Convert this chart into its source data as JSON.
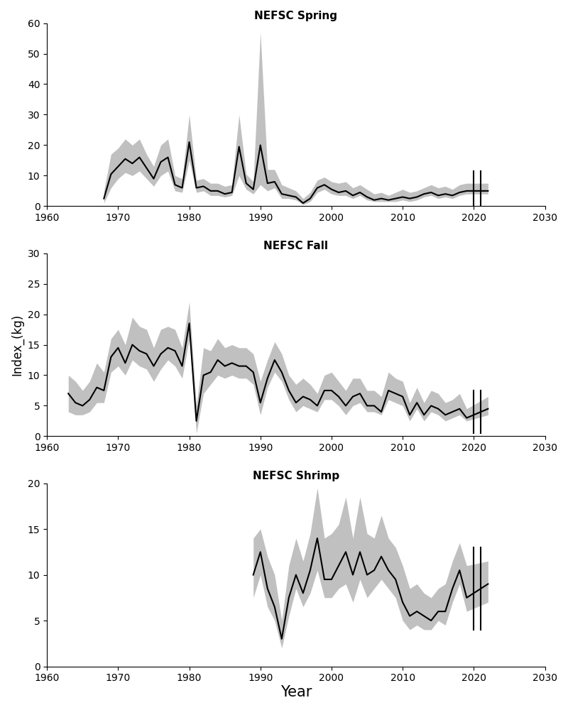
{
  "spring": {
    "title": "NEFSC Spring",
    "years": [
      1968,
      1969,
      1970,
      1971,
      1972,
      1973,
      1974,
      1975,
      1976,
      1977,
      1978,
      1979,
      1980,
      1981,
      1982,
      1983,
      1984,
      1985,
      1986,
      1987,
      1988,
      1989,
      1990,
      1991,
      1992,
      1993,
      1994,
      1995,
      1996,
      1997,
      1998,
      1999,
      2000,
      2001,
      2002,
      2003,
      2004,
      2005,
      2006,
      2007,
      2008,
      2009,
      2010,
      2011,
      2012,
      2013,
      2014,
      2015,
      2016,
      2017,
      2018,
      2019,
      2022
    ],
    "index": [
      2.5,
      10.5,
      13.0,
      15.5,
      14.0,
      16.0,
      12.5,
      9.0,
      14.5,
      16.0,
      7.0,
      6.0,
      21.0,
      6.0,
      6.5,
      5.0,
      5.0,
      4.0,
      4.5,
      19.5,
      7.5,
      5.5,
      20.0,
      7.5,
      8.0,
      4.0,
      3.5,
      3.0,
      1.0,
      2.5,
      6.0,
      7.0,
      5.5,
      4.5,
      5.0,
      3.5,
      4.5,
      3.0,
      2.0,
      2.5,
      2.0,
      2.5,
      3.0,
      2.5,
      3.0,
      4.0,
      4.5,
      3.5,
      4.0,
      3.5,
      4.5,
      5.0,
      5.0
    ],
    "lower": [
      1.0,
      6.0,
      9.0,
      11.0,
      10.0,
      11.5,
      9.0,
      6.5,
      10.0,
      11.5,
      5.0,
      4.5,
      15.0,
      4.5,
      5.0,
      3.5,
      3.5,
      3.0,
      3.5,
      10.0,
      5.5,
      4.0,
      7.0,
      5.0,
      6.0,
      2.5,
      2.5,
      2.0,
      0.5,
      1.5,
      4.5,
      5.5,
      4.0,
      3.5,
      3.5,
      2.5,
      3.5,
      2.0,
      1.5,
      1.5,
      1.5,
      1.5,
      2.0,
      1.5,
      2.0,
      3.0,
      3.5,
      2.5,
      3.0,
      2.5,
      3.5,
      4.0,
      4.0
    ],
    "upper": [
      5.0,
      17.0,
      19.0,
      22.0,
      20.0,
      22.0,
      17.0,
      13.0,
      20.0,
      22.0,
      10.0,
      9.0,
      30.0,
      8.5,
      9.0,
      7.5,
      7.5,
      6.5,
      7.0,
      30.0,
      10.5,
      8.0,
      57.0,
      12.0,
      12.0,
      7.0,
      6.0,
      5.0,
      2.5,
      4.5,
      8.5,
      9.5,
      8.0,
      7.5,
      8.0,
      6.0,
      7.0,
      5.5,
      4.0,
      4.5,
      3.5,
      4.5,
      5.5,
      4.5,
      5.0,
      6.0,
      7.0,
      6.0,
      6.5,
      5.5,
      7.0,
      7.5,
      7.5
    ],
    "ylim": [
      0,
      60
    ],
    "yticks": [
      0,
      10,
      20,
      30,
      40,
      50,
      60
    ],
    "break_x1": 2020,
    "break_x2": 2021,
    "break_y_center": 4.5,
    "break_y_half": 7.0
  },
  "fall": {
    "title": "NEFSC Fall",
    "years": [
      1963,
      1964,
      1965,
      1966,
      1967,
      1968,
      1969,
      1970,
      1971,
      1972,
      1973,
      1974,
      1975,
      1976,
      1977,
      1978,
      1979,
      1980,
      1981,
      1982,
      1983,
      1984,
      1985,
      1986,
      1987,
      1988,
      1989,
      1990,
      1991,
      1992,
      1993,
      1994,
      1995,
      1996,
      1997,
      1998,
      1999,
      2000,
      2001,
      2002,
      2003,
      2004,
      2005,
      2006,
      2007,
      2008,
      2009,
      2010,
      2011,
      2012,
      2013,
      2014,
      2015,
      2016,
      2017,
      2018,
      2019,
      2022
    ],
    "index": [
      7.0,
      5.5,
      5.0,
      6.0,
      8.0,
      7.5,
      13.0,
      14.5,
      12.0,
      15.0,
      14.0,
      13.5,
      11.5,
      13.5,
      14.5,
      14.0,
      11.5,
      18.5,
      2.5,
      10.0,
      10.5,
      12.5,
      11.5,
      12.0,
      11.5,
      11.5,
      10.5,
      5.5,
      9.5,
      12.5,
      10.5,
      7.5,
      5.5,
      6.5,
      6.0,
      5.0,
      7.5,
      7.5,
      6.5,
      5.0,
      6.5,
      7.0,
      5.0,
      5.0,
      4.0,
      7.5,
      7.0,
      6.5,
      3.5,
      5.5,
      3.5,
      5.0,
      4.5,
      3.5,
      4.0,
      4.5,
      3.0,
      4.5
    ],
    "lower": [
      4.0,
      3.5,
      3.5,
      4.0,
      5.5,
      5.5,
      10.5,
      11.5,
      10.0,
      12.5,
      11.5,
      11.0,
      9.0,
      11.0,
      12.5,
      11.5,
      9.5,
      16.0,
      0.5,
      7.0,
      8.5,
      10.0,
      9.5,
      10.0,
      9.5,
      9.5,
      8.5,
      3.5,
      8.0,
      10.5,
      9.0,
      6.0,
      4.0,
      5.0,
      4.5,
      4.0,
      6.0,
      6.0,
      5.0,
      3.5,
      5.0,
      5.5,
      4.0,
      4.0,
      3.5,
      6.0,
      5.5,
      5.0,
      2.5,
      4.5,
      2.5,
      4.0,
      3.5,
      2.5,
      3.0,
      3.5,
      2.5,
      3.5
    ],
    "upper": [
      10.0,
      9.0,
      7.5,
      9.0,
      12.0,
      10.5,
      16.0,
      17.5,
      15.0,
      19.5,
      18.0,
      17.5,
      14.5,
      17.5,
      18.0,
      17.5,
      14.5,
      22.0,
      5.0,
      14.5,
      14.0,
      16.0,
      14.5,
      15.0,
      14.5,
      14.5,
      13.5,
      9.0,
      12.5,
      15.5,
      13.5,
      10.0,
      8.5,
      9.5,
      8.5,
      7.0,
      10.0,
      10.5,
      9.0,
      7.5,
      9.5,
      9.5,
      7.5,
      7.5,
      6.5,
      10.5,
      9.5,
      9.0,
      5.5,
      8.0,
      5.5,
      7.5,
      7.0,
      5.5,
      6.0,
      7.0,
      4.5,
      6.5
    ],
    "ylim": [
      0,
      30
    ],
    "yticks": [
      0,
      5,
      10,
      15,
      20,
      25,
      30
    ],
    "break_x1": 2020,
    "break_x2": 2021,
    "break_y_center": 4.0,
    "break_y_half": 3.5
  },
  "shrimp": {
    "title": "NEFSC Shrimp",
    "years": [
      1989,
      1990,
      1991,
      1992,
      1993,
      1994,
      1995,
      1996,
      1997,
      1998,
      1999,
      2000,
      2001,
      2002,
      2003,
      2004,
      2005,
      2006,
      2007,
      2008,
      2009,
      2010,
      2011,
      2012,
      2013,
      2014,
      2015,
      2016,
      2017,
      2018,
      2019,
      2022
    ],
    "index": [
      10.0,
      12.5,
      8.5,
      6.5,
      3.0,
      7.5,
      10.0,
      8.0,
      10.5,
      14.0,
      9.5,
      9.5,
      11.0,
      12.5,
      10.0,
      12.5,
      10.0,
      10.5,
      12.0,
      10.5,
      9.5,
      7.0,
      5.5,
      6.0,
      5.5,
      5.0,
      6.0,
      6.0,
      8.5,
      10.5,
      7.5,
      9.0
    ],
    "lower": [
      7.5,
      10.0,
      6.5,
      5.0,
      2.0,
      5.5,
      8.5,
      6.5,
      8.0,
      10.5,
      7.5,
      7.5,
      8.5,
      9.0,
      7.0,
      9.5,
      7.5,
      8.5,
      9.5,
      8.5,
      7.5,
      5.0,
      4.0,
      4.5,
      4.0,
      4.0,
      5.0,
      4.5,
      7.0,
      9.0,
      6.0,
      7.0
    ],
    "upper": [
      14.0,
      15.0,
      12.0,
      10.0,
      5.0,
      11.0,
      14.0,
      11.5,
      14.5,
      19.5,
      14.0,
      14.5,
      15.5,
      18.5,
      14.0,
      18.5,
      14.5,
      14.0,
      16.5,
      14.0,
      13.0,
      11.0,
      8.5,
      9.0,
      8.0,
      7.5,
      8.5,
      9.0,
      11.5,
      13.5,
      11.0,
      11.5
    ],
    "ylim": [
      0,
      20
    ],
    "yticks": [
      0,
      5,
      10,
      15,
      20
    ],
    "break_x1": 2020,
    "break_x2": 2021,
    "break_y_center": 8.5,
    "break_y_half": 4.5
  },
  "xlim": [
    1960,
    2030
  ],
  "xticks": [
    1960,
    1970,
    1980,
    1990,
    2000,
    2010,
    2020,
    2030
  ],
  "ylabel": "Index_(kg)",
  "xlabel": "Year",
  "fill_color": "#c0c0c0",
  "line_color": "#000000"
}
